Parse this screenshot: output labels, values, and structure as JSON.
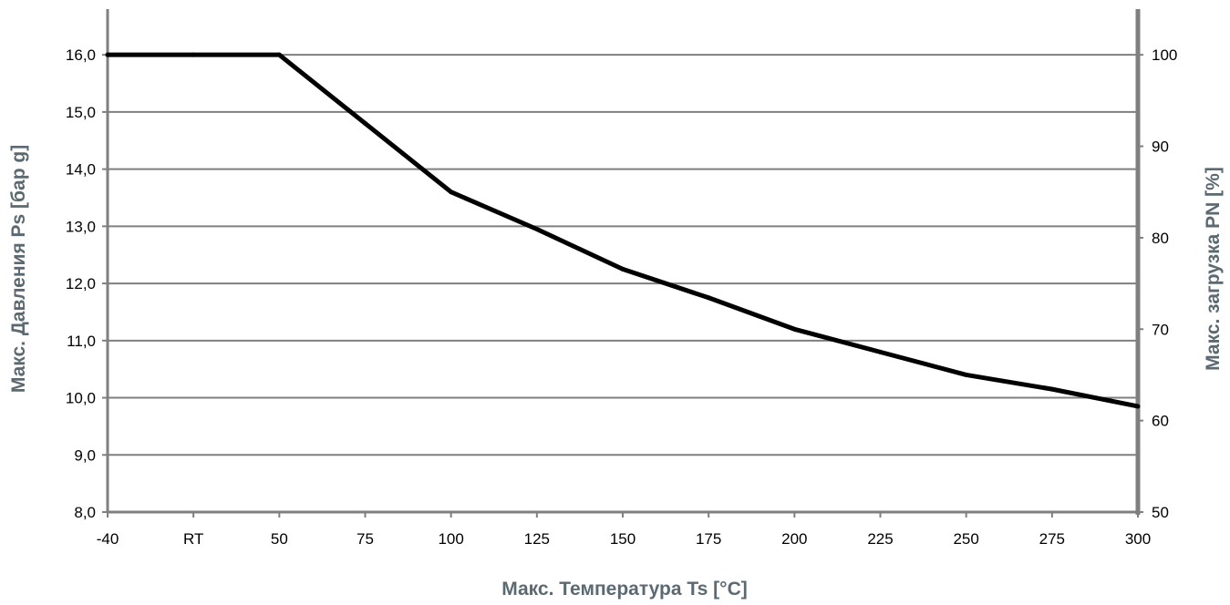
{
  "chart_data": {
    "type": "line",
    "xlabel": "Макс. Температура Ts [°C]",
    "ylabel": "Макс. Давления Ps [бар g]",
    "y2label": "Макс. загрузка PN [%]",
    "categories": [
      "-40",
      "RT",
      "50",
      "75",
      "100",
      "125",
      "150",
      "175",
      "200",
      "225",
      "250",
      "275",
      "300"
    ],
    "yticks": [
      "8,0",
      "9,0",
      "10,0",
      "11,0",
      "12,0",
      "13,0",
      "14,0",
      "15,0",
      "16,0"
    ],
    "ylim": [
      8,
      16.8
    ],
    "y2ticks": [
      "50",
      "60",
      "70",
      "80",
      "90",
      "100"
    ],
    "y2lim": [
      50,
      105
    ],
    "grid": true,
    "series": [
      {
        "x": [
          "-40",
          "RT",
          "50",
          "75",
          "100",
          "125",
          "150",
          "175",
          "200",
          "225",
          "250",
          "275",
          "300"
        ],
        "values": [
          16.0,
          16.0,
          16.0,
          14.8,
          13.6,
          12.95,
          12.25,
          11.75,
          11.2,
          10.8,
          10.4,
          10.15,
          9.85
        ]
      }
    ],
    "colors": {
      "line": "#000000",
      "grid": "#7f7f7f",
      "axis": "#7f7f7f",
      "axis_title": "#5b6a72"
    }
  }
}
